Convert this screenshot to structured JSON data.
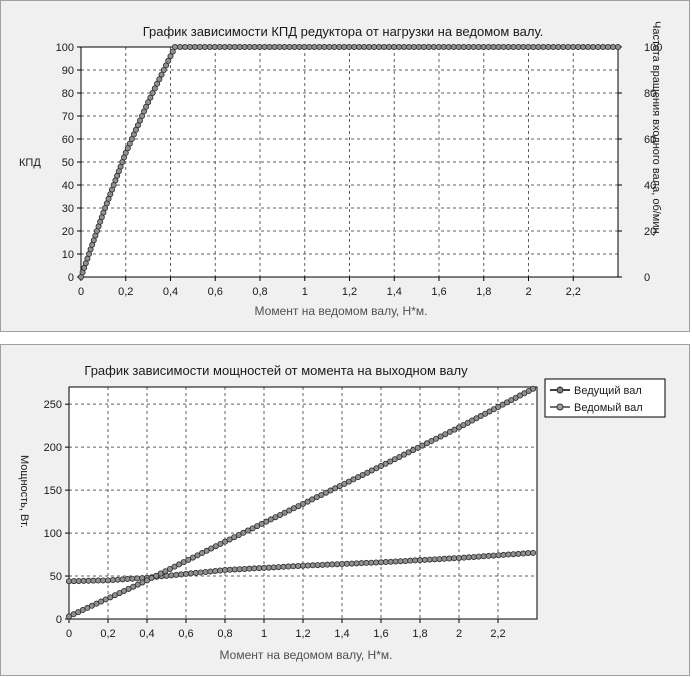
{
  "chart_data": [
    {
      "type": "line",
      "title": "График зависимости КПД редуктора от нагрузки на ведомом валу.",
      "xlabel": "Момент на ведомом валу, Н*м.",
      "ylabel": "КПД",
      "y2label": "Частота вращения входного вала, об/мин.",
      "xlim": [
        0,
        2.4
      ],
      "ylim": [
        0,
        100
      ],
      "y2lim": [
        0,
        100
      ],
      "x_ticks": [
        "0",
        "0,2",
        "0,4",
        "0,6",
        "0,8",
        "1",
        "1,2",
        "1,4",
        "1,6",
        "1,8",
        "2",
        "2,2"
      ],
      "y_ticks": [
        "0",
        "10",
        "20",
        "30",
        "40",
        "50",
        "60",
        "70",
        "80",
        "90",
        "100"
      ],
      "y2_ticks": [
        "0",
        "20",
        "40",
        "60",
        "80",
        "100"
      ],
      "grid": true,
      "series": [
        {
          "x": [
            0,
            0.1,
            0.2,
            0.3,
            0.42,
            2.4
          ],
          "y": [
            0,
            28,
            54,
            76,
            100,
            100
          ],
          "color": "#505050"
        }
      ]
    },
    {
      "type": "line",
      "title": "График зависимости мощностей от момента на выходном валу",
      "xlabel": "Момент на ведомом валу, Н*м.",
      "ylabel": "Мощность, Вт.",
      "xlim": [
        0,
        2.4
      ],
      "ylim": [
        0,
        270
      ],
      "x_ticks": [
        "0",
        "0,2",
        "0,4",
        "0,6",
        "0,8",
        "1",
        "1,2",
        "1,4",
        "1,6",
        "1,8",
        "2",
        "2,2"
      ],
      "y_ticks": [
        "0",
        "50",
        "100",
        "150",
        "200",
        "250"
      ],
      "grid": true,
      "legend": "top-right",
      "series": [
        {
          "name": "Ведущий вал",
          "x": [
            0,
            0.2,
            0.4,
            0.8,
            1.2,
            1.6,
            2.0,
            2.38
          ],
          "y": [
            44,
            45,
            48,
            57,
            62,
            66,
            71,
            77
          ],
          "color": "#404040"
        },
        {
          "name": "Ведомый вал",
          "x": [
            0,
            0.4,
            0.8,
            1.2,
            1.6,
            2.0,
            2.38
          ],
          "y": [
            3,
            45,
            90,
            134,
            178,
            223,
            268
          ],
          "color": "#707070"
        }
      ]
    }
  ]
}
